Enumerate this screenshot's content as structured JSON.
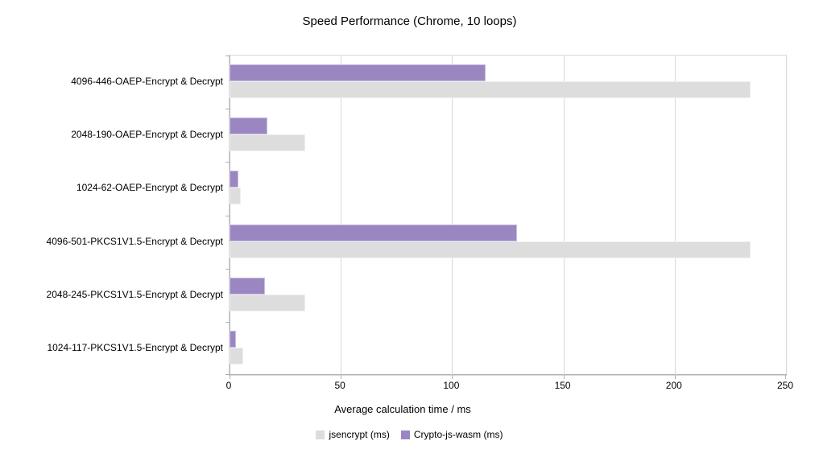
{
  "chart_data": {
    "type": "bar",
    "orientation": "horizontal",
    "title": "Speed Performance (Chrome, 10 loops)",
    "xlabel": "Average calculation time / ms",
    "ylabel": "",
    "xlim": [
      0,
      250
    ],
    "xticks": [
      0,
      50,
      100,
      150,
      200,
      250
    ],
    "grid": true,
    "legend_position": "bottom",
    "categories": [
      "4096-446-OAEP-Encrypt & Decrypt",
      "2048-190-OAEP-Encrypt & Decrypt",
      "1024-62-OAEP-Encrypt & Decrypt",
      "4096-501-PKCS1V1.5-Encrypt & Decrypt",
      "2048-245-PKCS1V1.5-Encrypt & Decrypt",
      "1024-117-PKCS1V1.5-Encrypt & Decrypt"
    ],
    "series": [
      {
        "name": "jsencrypt (ms)",
        "color": "#dddddd",
        "values": [
          234,
          34,
          5,
          234,
          34,
          6
        ]
      },
      {
        "name": "Crypto-js-wasm (ms)",
        "color": "#9a87c1",
        "values": [
          115,
          17,
          4,
          129,
          16,
          3
        ]
      }
    ]
  },
  "colors": {
    "background": "#ffffff",
    "grid": "#d8d8d8",
    "axis": "#b0b0b0",
    "text": "#000000",
    "series_jsencrypt": "#dddddd",
    "series_crypto_js_wasm": "#9a87c1"
  }
}
